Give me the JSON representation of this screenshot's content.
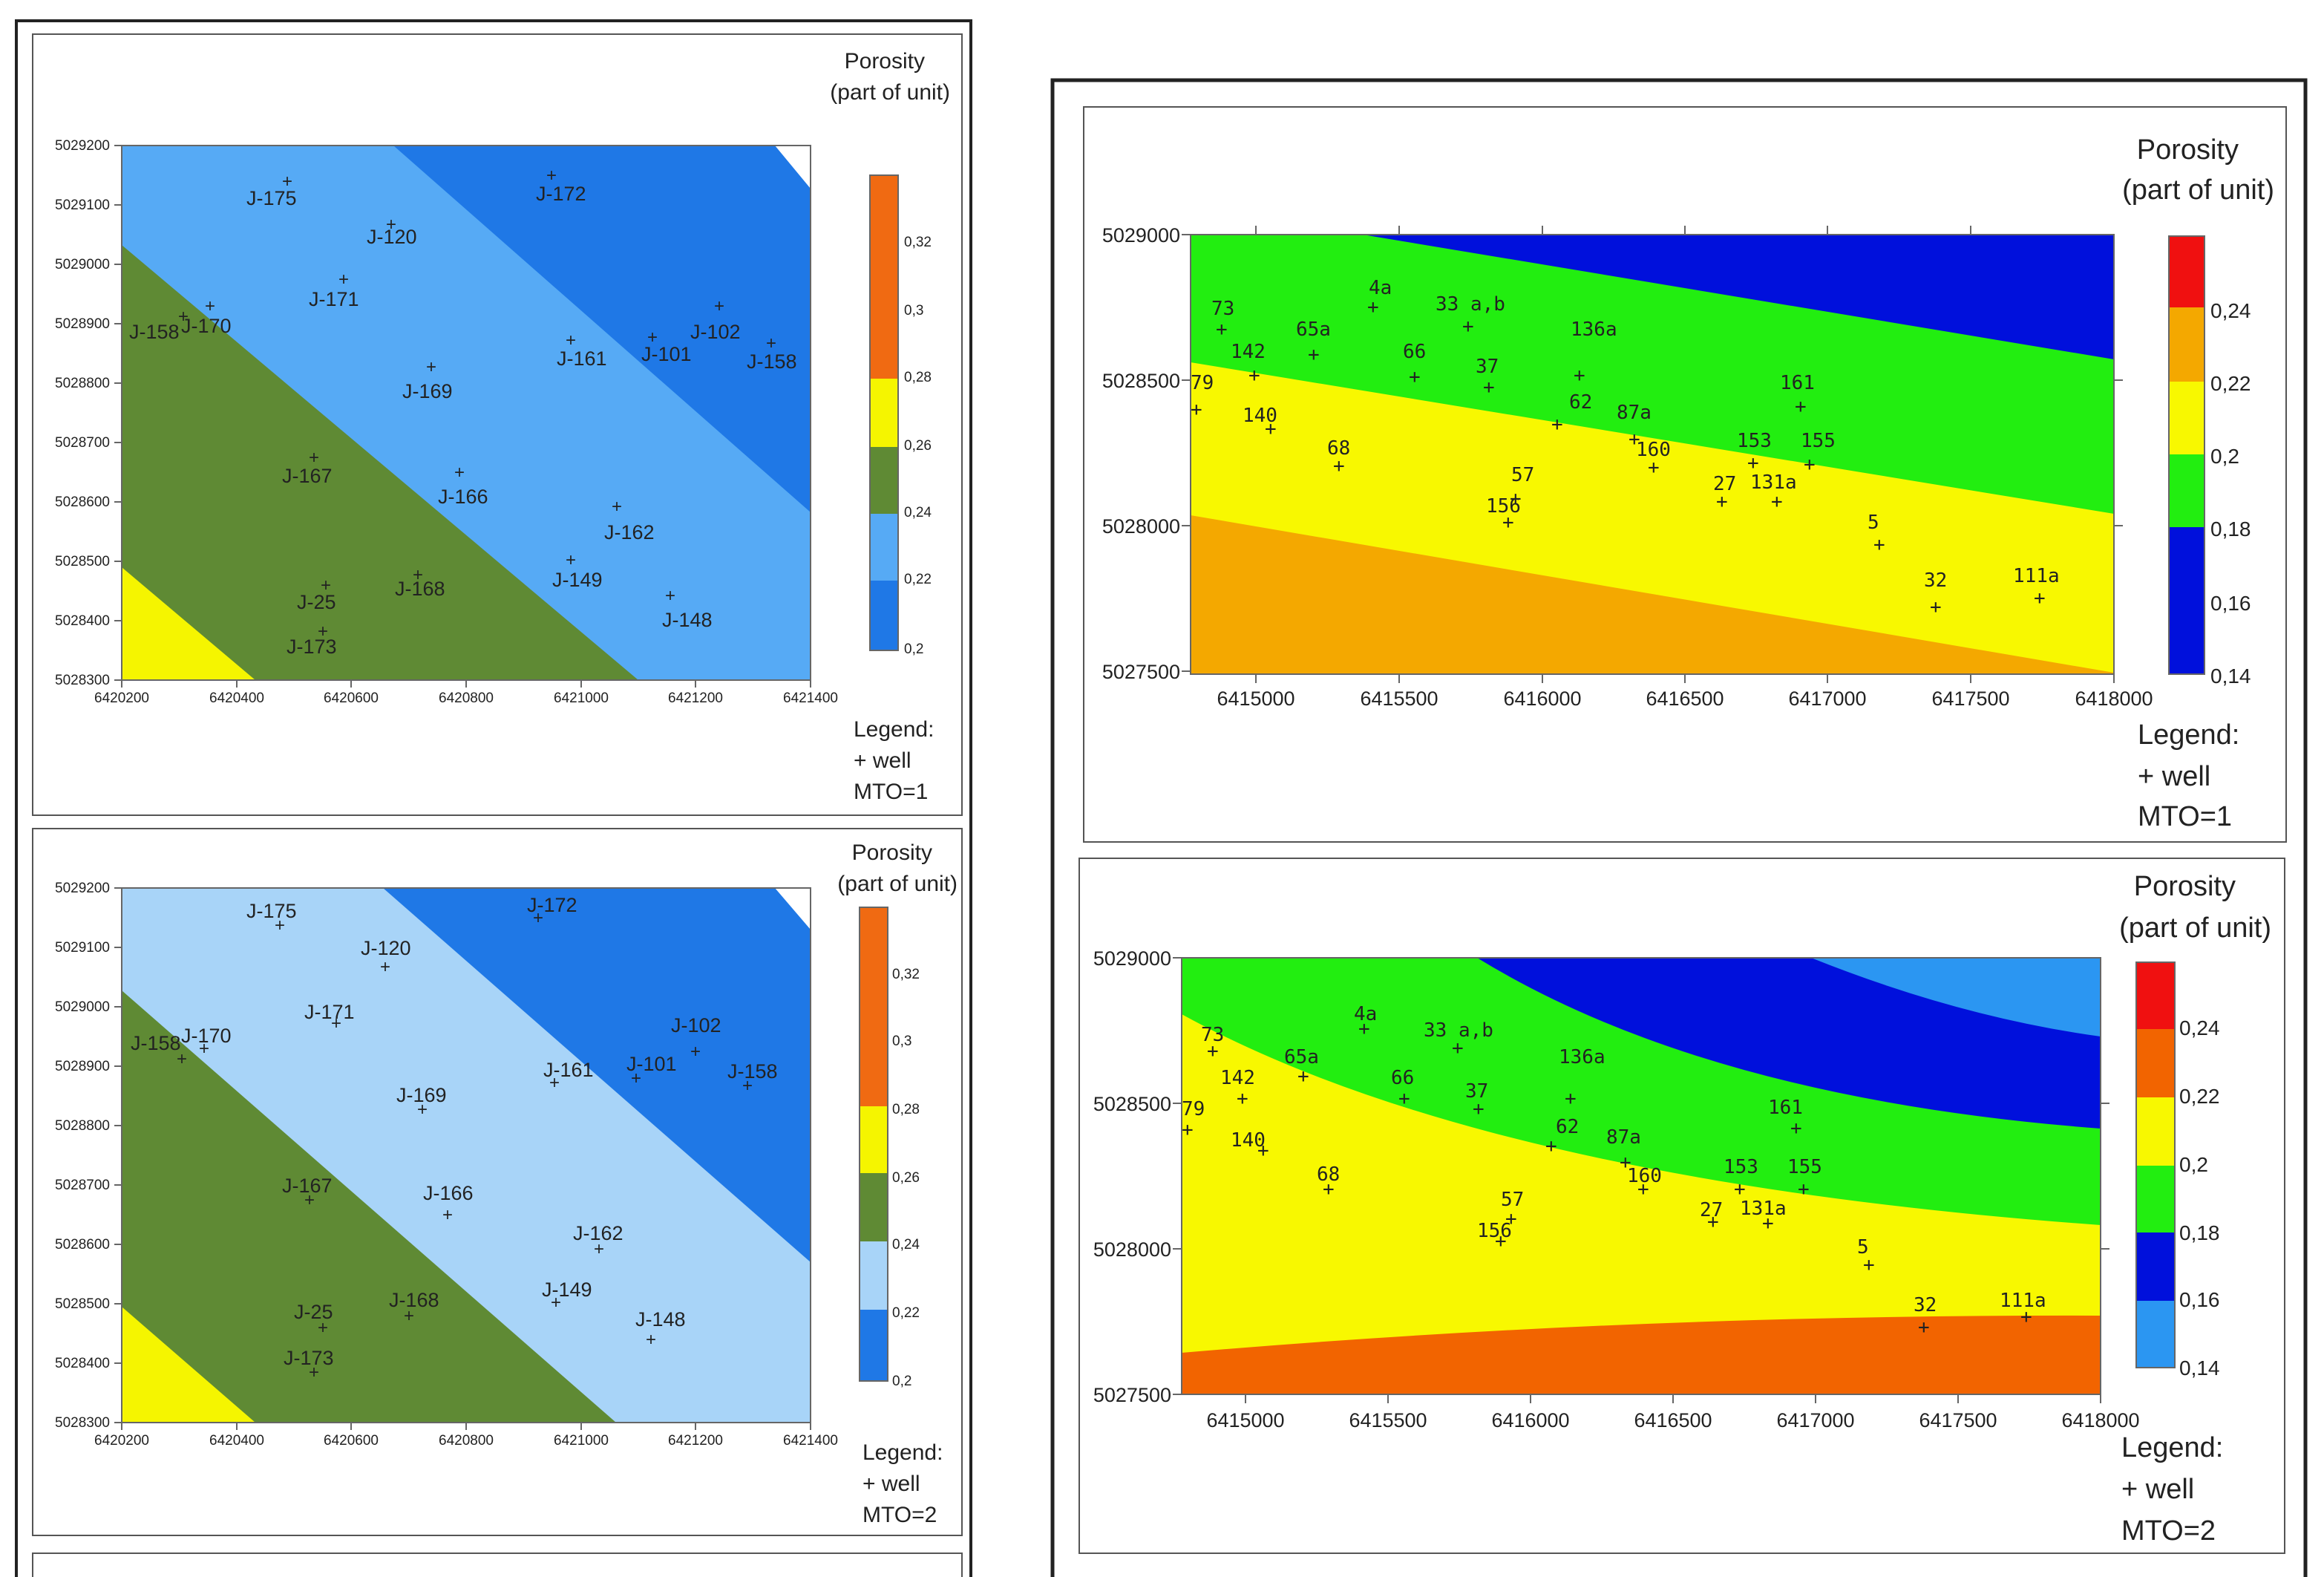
{
  "legend_common": {
    "porosity_title": "Porosity",
    "porosity_unit": "(part of unit)",
    "legend_title": "Legend:",
    "legend_well": "+ well"
  },
  "left_top": {
    "mto": "MTO=1",
    "x_ticks": [
      "6420200",
      "6420400",
      "6420600",
      "6420800",
      "6421000",
      "6421200",
      "6421400"
    ],
    "y_ticks": [
      "5029200",
      "5029100",
      "5029000",
      "5028900",
      "5028800",
      "5028700",
      "5028600",
      "5028500",
      "5028400",
      "5028300"
    ],
    "scale_labels": [
      "0,32",
      "0,3",
      "0,28",
      "0,26",
      "0,24",
      "0,22",
      "0,2"
    ],
    "wells": [
      "J-175",
      "J-172",
      "J-120",
      "J-171",
      "J-158",
      "J-170",
      "J-102",
      "J-161",
      "J-101",
      "J-158",
      "J-169",
      "J-167",
      "J-166",
      "J-162",
      "J-149",
      "J-25",
      "J-168",
      "J-148",
      "J-173"
    ]
  },
  "left_bottom": {
    "mto": "MTO=2",
    "x_ticks": [
      "6420200",
      "6420400",
      "6420600",
      "6420800",
      "6421000",
      "6421200",
      "6421400"
    ],
    "y_ticks": [
      "5029200",
      "5029100",
      "5029000",
      "5028900",
      "5028800",
      "5028700",
      "5028600",
      "5028500",
      "5028400",
      "5028300"
    ],
    "scale_labels": [
      "0,32",
      "0,3",
      "0,28",
      "0,26",
      "0,24",
      "0,22",
      "0,2"
    ],
    "wells": [
      "J-175",
      "J-172",
      "J-120",
      "J-171",
      "J-158",
      "J-170",
      "J-102",
      "J-161",
      "J-101",
      "J-158",
      "J-169",
      "J-167",
      "J-166",
      "J-162",
      "J-149",
      "J-25",
      "J-168",
      "J-148",
      "J-173"
    ]
  },
  "right_top": {
    "mto": "MTO=1",
    "x_ticks": [
      "6415000",
      "6415500",
      "6416000",
      "6416500",
      "6417000",
      "6417500",
      "6418000"
    ],
    "y_ticks": [
      "5029000",
      "5028500",
      "5028000",
      "5027500"
    ],
    "scale_labels": [
      "0,24",
      "0,22",
      "0,2",
      "0,18",
      "0,16",
      "0,14"
    ],
    "wells": [
      "73",
      "4a",
      "33 a,b",
      "65a",
      "142",
      "66",
      "136a",
      "37",
      "79",
      "161",
      "62",
      "87a",
      "140",
      "153",
      "155",
      "68",
      "160",
      "57",
      "27",
      "131a",
      "156",
      "5",
      "32",
      "111a"
    ]
  },
  "right_bottom": {
    "mto": "MTO=2",
    "x_ticks": [
      "6415000",
      "6415500",
      "6416000",
      "6416500",
      "6417000",
      "6417500",
      "6418000"
    ],
    "y_ticks": [
      "5029000",
      "5028500",
      "5028000",
      "5027500"
    ],
    "scale_labels": [
      "0,24",
      "0,22",
      "0,2",
      "0,18",
      "0,16",
      "0,14"
    ],
    "wells": [
      "73",
      "4a",
      "33 a,b",
      "65a",
      "142",
      "66",
      "136a",
      "37",
      "79",
      "161",
      "62",
      "87a",
      "140",
      "153",
      "155",
      "68",
      "160",
      "57",
      "27",
      "131a",
      "156",
      "5",
      "32",
      "111a"
    ]
  },
  "colors": {
    "left_dark_blue": "#1f78e6",
    "left_mid_blue": "#56aaf5",
    "left_light_blue": "#a8d4f8",
    "left_olive": "#5f8a34",
    "left_yellow": "#f5f500",
    "left_orange": "#f06a12",
    "right_blue": "#0010dc",
    "right_green": "#22ee10",
    "right_yellow": "#f8f800",
    "right_amber": "#f4a800",
    "right_orange_red": "#f26400",
    "right_red": "#f01010",
    "right_light_blue": "#2b96f2"
  }
}
